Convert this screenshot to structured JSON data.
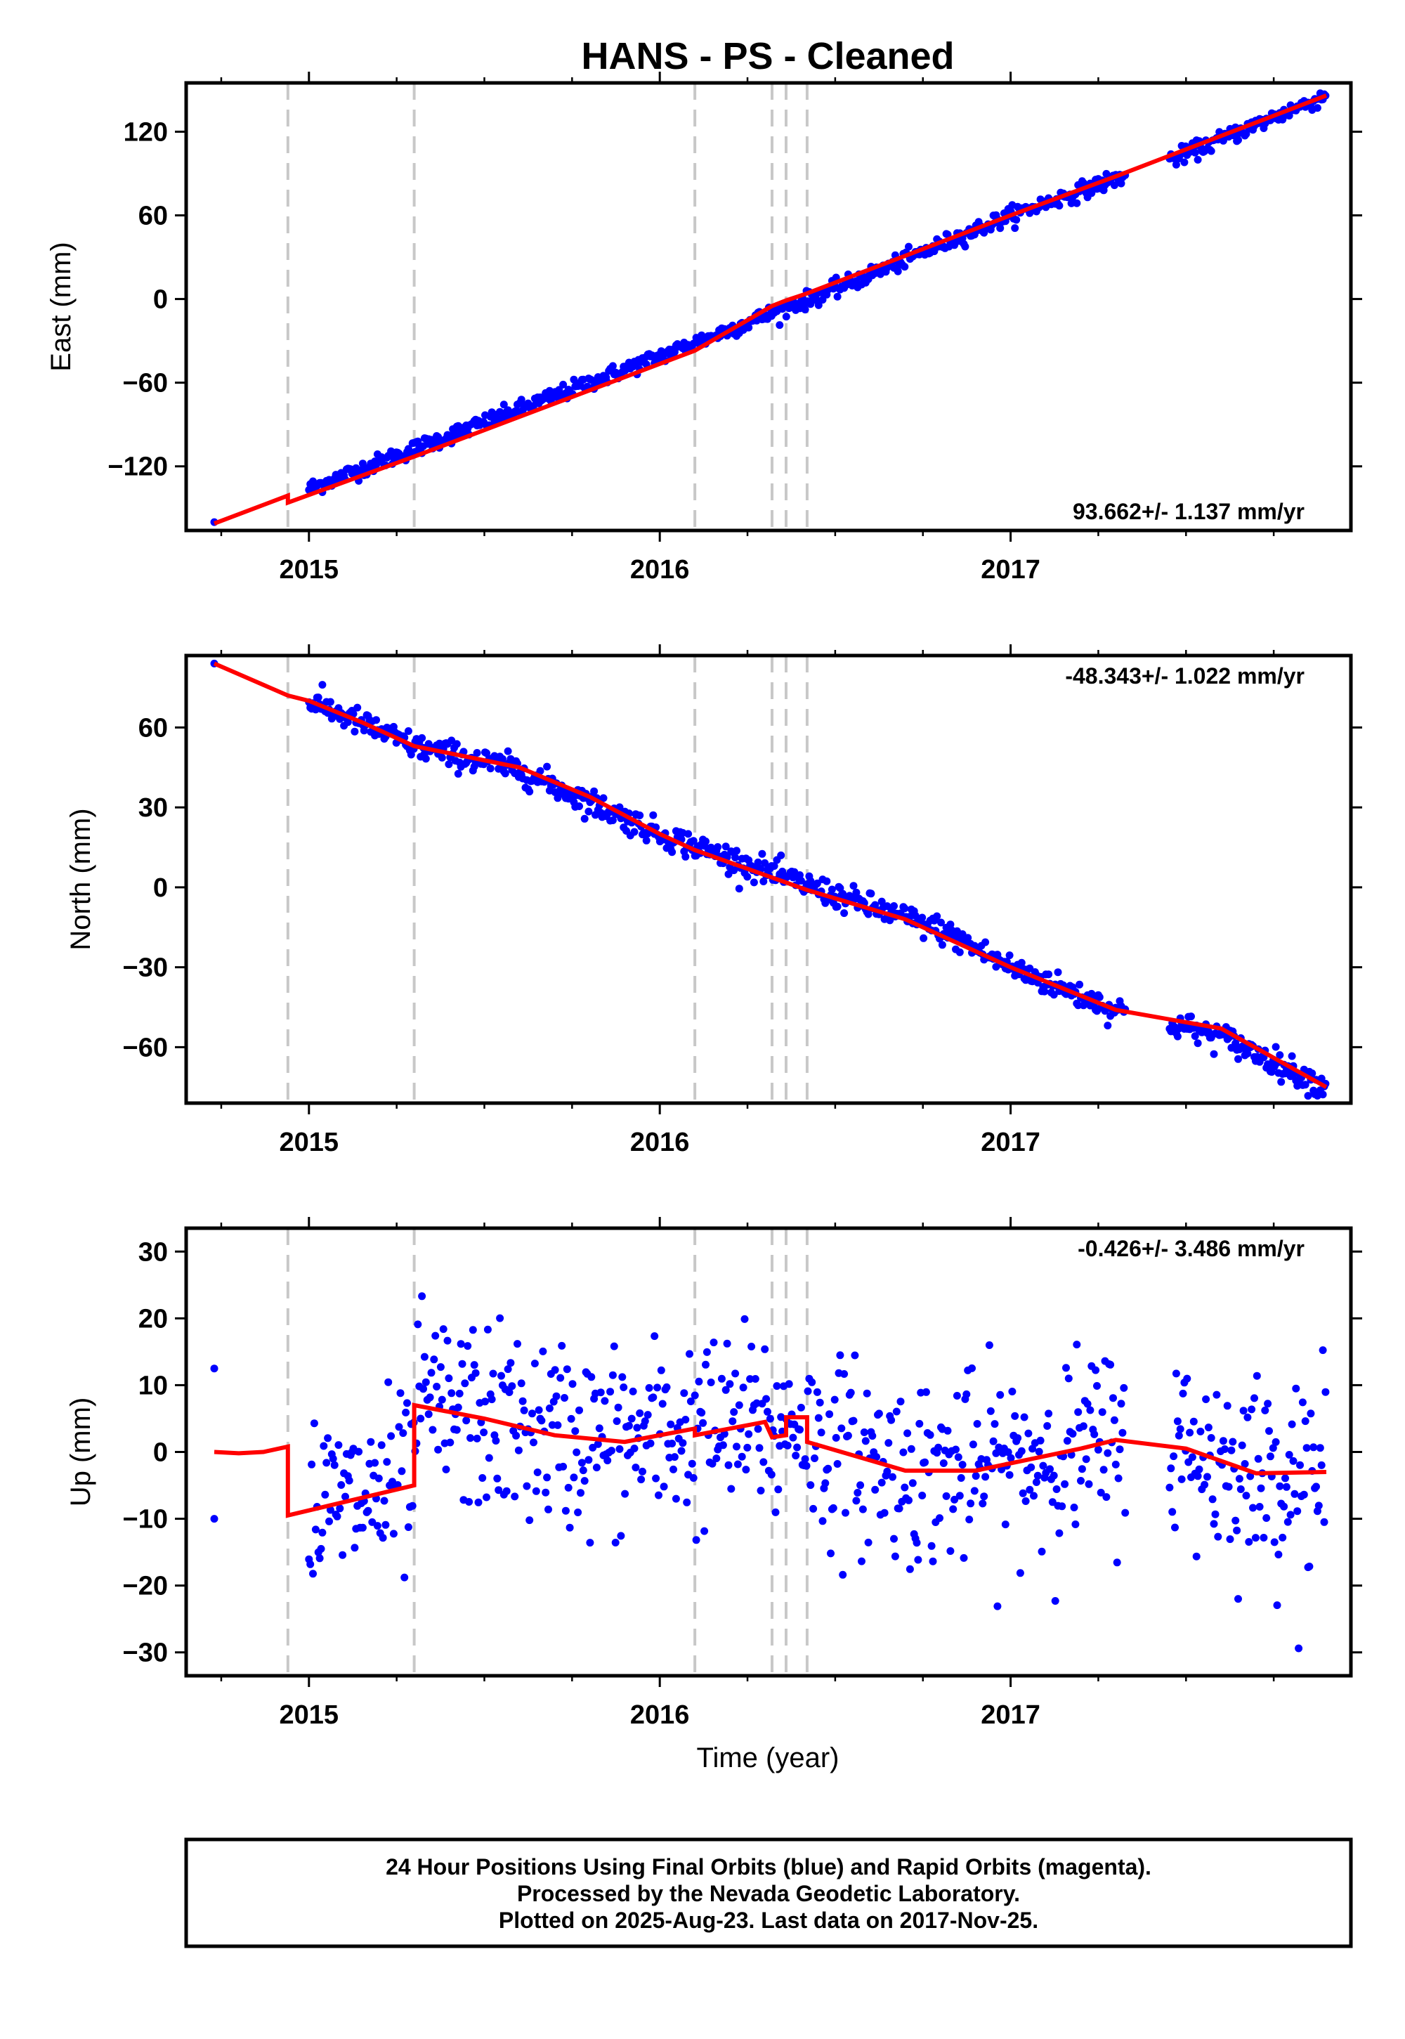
{
  "title": "HANS  - PS - Cleaned",
  "xlabel": "Time (year)",
  "footer": {
    "line1": "24 Hour Positions Using Final Orbits (blue) and Rapid Orbits (magenta).",
    "line2": "Processed by the Nevada Geodetic Laboratory.",
    "line3": "Plotted on 2025-Aug-23. Last data on 2017-Nov-25."
  },
  "colors": {
    "points": "#0000ff",
    "model": "#ff0000",
    "events": "#c8c8c8",
    "frame": "#000000"
  },
  "chart_data": [
    {
      "type": "scatter",
      "panel": "east",
      "ylabel": "East (mm)",
      "rate_label": "93.662+/- 1.137 mm/yr",
      "xlim": [
        2014.65,
        2017.97
      ],
      "ylim": [
        -166,
        155
      ],
      "xticks": [
        2015,
        2016,
        2017
      ],
      "xtick_labels": [
        "2015",
        "2016",
        "2017"
      ],
      "yticks": [
        -120,
        -60,
        0,
        60,
        120
      ],
      "ytick_labels": [
        "−120",
        "−60",
        "0",
        "60",
        "120"
      ],
      "event_lines": [
        2014.94,
        2015.3,
        2016.1,
        2016.32,
        2016.36,
        2016.42
      ],
      "points_summary": {
        "x_start": 2015.0,
        "x_end": 2017.9,
        "x_outliers": [
          2014.73
        ],
        "y_outliers": [
          -160
        ],
        "trend": [
          [
            2015.0,
            -136
          ],
          [
            2016.0,
            -41
          ],
          [
            2016.5,
            7
          ],
          [
            2017.0,
            60
          ],
          [
            2017.5,
            104
          ],
          [
            2017.9,
            146
          ]
        ],
        "scatter_mm": 3
      },
      "model": [
        [
          2014.73,
          -161
        ],
        [
          2014.94,
          -141
        ],
        [
          2014.94,
          -146
        ],
        [
          2015.3,
          -113
        ],
        [
          2016.1,
          -37
        ],
        [
          2016.32,
          -5
        ],
        [
          2016.36,
          -1
        ],
        [
          2016.42,
          4
        ],
        [
          2017.0,
          60
        ],
        [
          2017.3,
          88
        ],
        [
          2017.9,
          146
        ]
      ]
    },
    {
      "type": "scatter",
      "panel": "north",
      "ylabel": "North (mm)",
      "rate_label": "-48.343+/- 1.022 mm/yr",
      "xlim": [
        2014.65,
        2017.97
      ],
      "ylim": [
        -81,
        87
      ],
      "xticks": [
        2015,
        2016,
        2017
      ],
      "xtick_labels": [
        "2015",
        "2016",
        "2017"
      ],
      "yticks": [
        -60,
        -30,
        0,
        30,
        60
      ],
      "ytick_labels": [
        "−60",
        "−30",
        "0",
        "30",
        "60"
      ],
      "event_lines": [
        2014.94,
        2015.3,
        2016.1,
        2016.32,
        2016.36,
        2016.42
      ],
      "points_summary": {
        "x_start": 2015.0,
        "x_end": 2017.9,
        "x_outliers": [
          2014.73
        ],
        "y_outliers": [
          84
        ],
        "trend": [
          [
            2015.0,
            70
          ],
          [
            2015.3,
            53
          ],
          [
            2015.6,
            44
          ],
          [
            2016.0,
            20
          ],
          [
            2016.5,
            -3
          ],
          [
            2016.8,
            -16
          ],
          [
            2017.0,
            -30
          ],
          [
            2017.3,
            -46
          ],
          [
            2017.6,
            -56
          ],
          [
            2017.9,
            -75
          ]
        ],
        "scatter_mm": 2.5
      },
      "model": [
        [
          2014.73,
          84
        ],
        [
          2014.94,
          72
        ],
        [
          2015.0,
          70
        ],
        [
          2015.15,
          62
        ],
        [
          2015.3,
          53
        ],
        [
          2015.6,
          45
        ],
        [
          2015.8,
          34
        ],
        [
          2016.0,
          20
        ],
        [
          2016.1,
          14
        ],
        [
          2016.42,
          -1
        ],
        [
          2016.7,
          -12
        ],
        [
          2017.0,
          -30
        ],
        [
          2017.3,
          -46
        ],
        [
          2017.6,
          -53
        ],
        [
          2017.9,
          -75
        ]
      ]
    },
    {
      "type": "scatter",
      "panel": "up",
      "ylabel": "Up (mm)",
      "rate_label": "-0.426+/- 3.486 mm/yr",
      "xlim": [
        2014.65,
        2017.97
      ],
      "ylim": [
        -33.5,
        33.5
      ],
      "xticks": [
        2015,
        2016,
        2017
      ],
      "xtick_labels": [
        "2015",
        "2016",
        "2017"
      ],
      "yticks": [
        -30,
        -20,
        -10,
        0,
        10,
        20,
        30
      ],
      "ytick_labels": [
        "−30",
        "−20",
        "−10",
        "0",
        "10",
        "20",
        "30"
      ],
      "event_lines": [
        2014.94,
        2015.3,
        2016.1,
        2016.32,
        2016.36,
        2016.42
      ],
      "points_summary": {
        "x_start": 2015.0,
        "x_end": 2017.9,
        "x_outliers": [
          2014.73,
          2014.73
        ],
        "y_outliers": [
          12.5,
          -10
        ],
        "scatter_mm": 7
      },
      "model": [
        [
          2014.73,
          0
        ],
        [
          2014.8,
          -0.2
        ],
        [
          2014.87,
          0
        ],
        [
          2014.94,
          0.8
        ],
        [
          2014.94,
          -9.5
        ],
        [
          2015.1,
          -7.5
        ],
        [
          2015.3,
          -5
        ],
        [
          2015.3,
          7
        ],
        [
          2015.5,
          5
        ],
        [
          2015.7,
          2.5
        ],
        [
          2015.9,
          1.5
        ],
        [
          2016.1,
          3.5
        ],
        [
          2016.1,
          2.5
        ],
        [
          2016.3,
          4.5
        ],
        [
          2016.32,
          2.2
        ],
        [
          2016.36,
          2.5
        ],
        [
          2016.36,
          5.2
        ],
        [
          2016.42,
          5.2
        ],
        [
          2016.42,
          1.5
        ],
        [
          2016.7,
          -2.8
        ],
        [
          2016.9,
          -2.8
        ],
        [
          2017.2,
          0.5
        ],
        [
          2017.3,
          1.8
        ],
        [
          2017.5,
          0.5
        ],
        [
          2017.7,
          -3.2
        ],
        [
          2017.9,
          -3
        ]
      ]
    }
  ]
}
